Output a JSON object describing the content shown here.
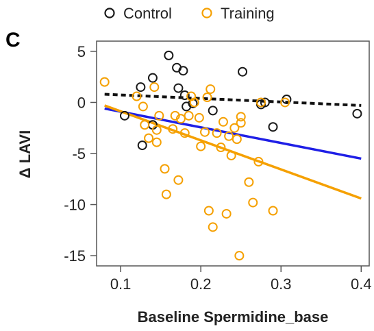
{
  "chart_data": {
    "type": "scatter",
    "panel_label": "C",
    "xlabel": "Baseline Spermidine_base",
    "ylabel": "Δ LAVI",
    "xlim": [
      0.07,
      0.41
    ],
    "ylim": [
      -16,
      6
    ],
    "x_ticks": [
      0.1,
      0.2,
      0.3,
      0.4
    ],
    "x_tick_labels": [
      "0.1",
      "0.2",
      "0.3",
      "0.4"
    ],
    "y_ticks": [
      -15,
      -10,
      -5,
      0,
      5
    ],
    "y_tick_labels": [
      "-15",
      "-10",
      "-5",
      "0",
      "5"
    ],
    "grid": false,
    "legend_position": "top",
    "series": [
      {
        "name": "Control",
        "color": "#1a1a1a",
        "points": [
          {
            "x": 0.105,
            "y": -1.3
          },
          {
            "x": 0.125,
            "y": 1.5
          },
          {
            "x": 0.127,
            "y": -4.2
          },
          {
            "x": 0.14,
            "y": -2.2
          },
          {
            "x": 0.14,
            "y": 2.4
          },
          {
            "x": 0.16,
            "y": 4.6
          },
          {
            "x": 0.17,
            "y": 3.4
          },
          {
            "x": 0.172,
            "y": 1.4
          },
          {
            "x": 0.178,
            "y": 3.1
          },
          {
            "x": 0.18,
            "y": 0.7
          },
          {
            "x": 0.182,
            "y": -0.4
          },
          {
            "x": 0.19,
            "y": -0.1
          },
          {
            "x": 0.215,
            "y": -0.8
          },
          {
            "x": 0.252,
            "y": 3.0
          },
          {
            "x": 0.275,
            "y": -0.2
          },
          {
            "x": 0.28,
            "y": 0.0
          },
          {
            "x": 0.29,
            "y": -2.4
          },
          {
            "x": 0.307,
            "y": 0.3
          },
          {
            "x": 0.395,
            "y": -1.1
          }
        ]
      },
      {
        "name": "Training",
        "color": "#f5a000",
        "points": [
          {
            "x": 0.08,
            "y": 2.0
          },
          {
            "x": 0.12,
            "y": 0.6
          },
          {
            "x": 0.128,
            "y": -0.4
          },
          {
            "x": 0.13,
            "y": -2.2
          },
          {
            "x": 0.135,
            "y": -3.5
          },
          {
            "x": 0.142,
            "y": 1.5
          },
          {
            "x": 0.145,
            "y": -2.7
          },
          {
            "x": 0.145,
            "y": -3.9
          },
          {
            "x": 0.148,
            "y": -1.3
          },
          {
            "x": 0.155,
            "y": -6.5
          },
          {
            "x": 0.157,
            "y": -9.0
          },
          {
            "x": 0.165,
            "y": -2.6
          },
          {
            "x": 0.168,
            "y": -1.3
          },
          {
            "x": 0.172,
            "y": -7.6
          },
          {
            "x": 0.175,
            "y": -1.6
          },
          {
            "x": 0.18,
            "y": -3.0
          },
          {
            "x": 0.185,
            "y": -1.3
          },
          {
            "x": 0.188,
            "y": 0.6
          },
          {
            "x": 0.192,
            "y": 0.0
          },
          {
            "x": 0.198,
            "y": -1.5
          },
          {
            "x": 0.2,
            "y": -4.3
          },
          {
            "x": 0.205,
            "y": -2.9
          },
          {
            "x": 0.208,
            "y": 0.5
          },
          {
            "x": 0.21,
            "y": -10.6
          },
          {
            "x": 0.212,
            "y": 1.3
          },
          {
            "x": 0.215,
            "y": -12.2
          },
          {
            "x": 0.22,
            "y": -3.0
          },
          {
            "x": 0.225,
            "y": -4.4
          },
          {
            "x": 0.228,
            "y": -1.9
          },
          {
            "x": 0.232,
            "y": -10.9
          },
          {
            "x": 0.235,
            "y": -3.3
          },
          {
            "x": 0.238,
            "y": -5.2
          },
          {
            "x": 0.242,
            "y": -2.5
          },
          {
            "x": 0.245,
            "y": -3.6
          },
          {
            "x": 0.248,
            "y": -15.0
          },
          {
            "x": 0.25,
            "y": -2.0
          },
          {
            "x": 0.25,
            "y": -1.4
          },
          {
            "x": 0.26,
            "y": -7.8
          },
          {
            "x": 0.265,
            "y": -9.8
          },
          {
            "x": 0.272,
            "y": -5.8
          },
          {
            "x": 0.275,
            "y": 0.0
          },
          {
            "x": 0.29,
            "y": -10.6
          },
          {
            "x": 0.305,
            "y": 0.0
          }
        ]
      }
    ],
    "fit_lines": [
      {
        "color": "#111111",
        "dashed": true,
        "x": [
          0.08,
          0.4
        ],
        "y": [
          0.8,
          -0.3
        ]
      },
      {
        "color": "#1f1fe6",
        "dashed": false,
        "x": [
          0.08,
          0.4
        ],
        "y": [
          -0.6,
          -5.5
        ]
      },
      {
        "color": "#f5a000",
        "dashed": false,
        "x": [
          0.08,
          0.4
        ],
        "y": [
          -0.3,
          -9.4
        ]
      }
    ]
  }
}
